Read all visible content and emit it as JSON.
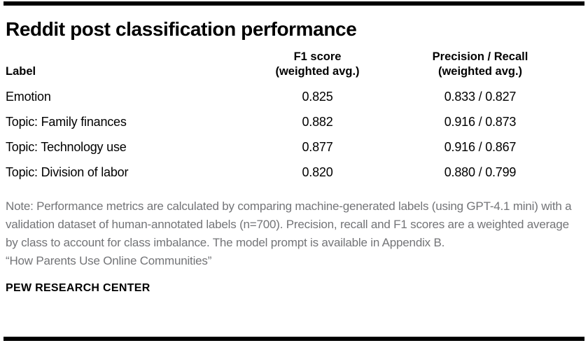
{
  "title": "Reddit post classification performance",
  "colors": {
    "rule": "#000000",
    "text": "#000000",
    "note_gray": "#737477",
    "background": "#ffffff"
  },
  "table": {
    "header": {
      "label": "Label",
      "f1_title": "F1 score",
      "f1_sub": "(weighted avg.)",
      "pr_title": "Precision / Recall",
      "pr_sub": "(weighted avg.)"
    },
    "rows": [
      {
        "label": "Emotion",
        "f1": "0.825",
        "precision_recall": "0.833 / 0.827"
      },
      {
        "label": "Topic: Family finances",
        "f1": "0.882",
        "precision_recall": "0.916 / 0.873"
      },
      {
        "label": "Topic: Technology use",
        "f1": "0.877",
        "precision_recall": "0.916 / 0.867"
      },
      {
        "label": "Topic: Division of labor",
        "f1": "0.820",
        "precision_recall": "0.880 / 0.799"
      }
    ]
  },
  "chart_data": {
    "type": "table",
    "title": "Reddit post classification performance",
    "columns": [
      "Label",
      "F1 score (weighted avg.)",
      "Precision / Recall (weighted avg.)"
    ],
    "rows": [
      [
        "Emotion",
        "0.825",
        "0.833 / 0.827"
      ],
      [
        "Topic: Family finances",
        "0.882",
        "0.916 / 0.873"
      ],
      [
        "Topic: Technology use",
        "0.877",
        "0.916 / 0.867"
      ],
      [
        "Topic: Division of labor",
        "0.820",
        "0.880 / 0.799"
      ]
    ],
    "series": [
      {
        "name": "F1 score (weighted avg.)",
        "values": [
          0.825,
          0.882,
          0.877,
          0.82
        ]
      },
      {
        "name": "Precision (weighted avg.)",
        "values": [
          0.833,
          0.916,
          0.916,
          0.88
        ]
      },
      {
        "name": "Recall (weighted avg.)",
        "values": [
          0.827,
          0.873,
          0.867,
          0.799
        ]
      }
    ],
    "categories": [
      "Emotion",
      "Topic: Family finances",
      "Topic: Technology use",
      "Topic: Division of labor"
    ]
  },
  "note": {
    "text": "Note: Performance metrics are calculated by comparing machine-generated labels (using GPT-4.1 mini) with a validation dataset of human-annotated labels (n=700). Precision, recall and F1 scores are a weighted average by class to account for class imbalance. The model prompt is available in Appendix B.",
    "source": "“How Parents Use Online Communities”"
  },
  "footer": "PEW RESEARCH CENTER"
}
